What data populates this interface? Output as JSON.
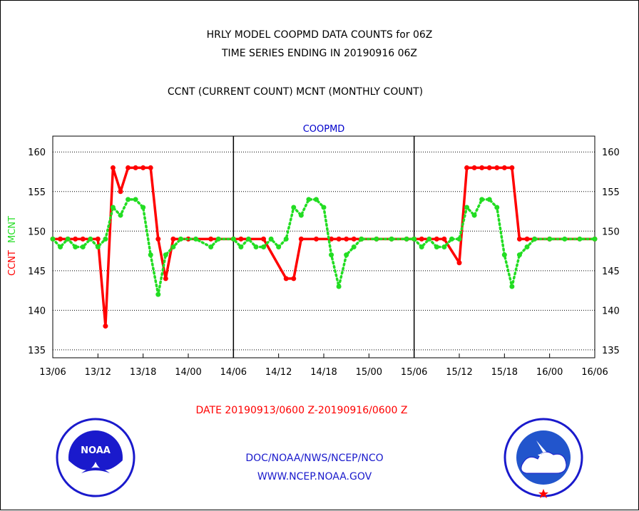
{
  "title_line1": "HRLY MODEL COOPMD DATA COUNTS for 06Z",
  "title_line2": "TIME SERIES ENDING IN 20190916 06Z",
  "title_line3": "CCNT (CURRENT COUNT) MCNT (MONTHLY COUNT)",
  "date_range": "DATE 20190913/0600 Z-20190916/0600 Z",
  "footer": {
    "line1": "DOC/NOAA/NWS/NCEP/NCO",
    "line2": "WWW.NCEP.NOAA.GOV"
  },
  "logos": {
    "left": "noaa-logo",
    "right": "nws-logo"
  },
  "colors": {
    "ccnt": "#ff0000",
    "mcnt": "#22dd22",
    "axis": "#000000"
  },
  "chart_data": {
    "type": "line",
    "title": "COOPMD",
    "ylabel_parts": [
      "CCNT",
      "MCNT"
    ],
    "ylim": [
      134,
      162
    ],
    "yticks": [
      135,
      140,
      145,
      150,
      155,
      160
    ],
    "xlim": [
      0,
      72
    ],
    "xticks": [
      {
        "x": 0,
        "label": "13/06"
      },
      {
        "x": 6,
        "label": "13/12"
      },
      {
        "x": 12,
        "label": "13/18"
      },
      {
        "x": 18,
        "label": "14/00"
      },
      {
        "x": 24,
        "label": "14/06"
      },
      {
        "x": 30,
        "label": "14/12"
      },
      {
        "x": 36,
        "label": "14/18"
      },
      {
        "x": 42,
        "label": "15/00"
      },
      {
        "x": 48,
        "label": "15/06"
      },
      {
        "x": 54,
        "label": "15/12"
      },
      {
        "x": 60,
        "label": "15/18"
      },
      {
        "x": 66,
        "label": "16/00"
      },
      {
        "x": 72,
        "label": "16/06"
      }
    ],
    "panel_dividers": [
      24,
      48
    ],
    "grid": true,
    "series": [
      {
        "name": "CCNT",
        "style": "solid",
        "points": [
          [
            0,
            149
          ],
          [
            1,
            149
          ],
          [
            2,
            149
          ],
          [
            3,
            149
          ],
          [
            4,
            149
          ],
          [
            6,
            149
          ],
          [
            7,
            138
          ],
          [
            8,
            158
          ],
          [
            9,
            155
          ],
          [
            10,
            158
          ],
          [
            11,
            158
          ],
          [
            12,
            158
          ],
          [
            13,
            158
          ],
          [
            14,
            149
          ],
          [
            15,
            144
          ],
          [
            16,
            149
          ],
          [
            18,
            149
          ],
          [
            21,
            149
          ],
          [
            24,
            149
          ],
          [
            25,
            149
          ],
          [
            28,
            149
          ],
          [
            31,
            144
          ],
          [
            32,
            144
          ],
          [
            33,
            149
          ],
          [
            35,
            149
          ],
          [
            37,
            149
          ],
          [
            38,
            149
          ],
          [
            39,
            149
          ],
          [
            40,
            149
          ],
          [
            41,
            149
          ],
          [
            43,
            149
          ],
          [
            45,
            149
          ],
          [
            47,
            149
          ],
          [
            48,
            149
          ],
          [
            49,
            149
          ],
          [
            51,
            149
          ],
          [
            52,
            149
          ],
          [
            54,
            146
          ],
          [
            55,
            158
          ],
          [
            56,
            158
          ],
          [
            57,
            158
          ],
          [
            58,
            158
          ],
          [
            59,
            158
          ],
          [
            60,
            158
          ],
          [
            61,
            158
          ],
          [
            62,
            149
          ],
          [
            63,
            149
          ],
          [
            64,
            149
          ],
          [
            66,
            149
          ],
          [
            72,
            149
          ]
        ]
      },
      {
        "name": "MCNT",
        "style": "dotted",
        "points": [
          [
            0,
            149
          ],
          [
            1,
            148
          ],
          [
            2,
            149
          ],
          [
            3,
            148
          ],
          [
            4,
            148
          ],
          [
            5,
            149
          ],
          [
            6,
            148
          ],
          [
            7,
            149
          ],
          [
            8,
            153
          ],
          [
            9,
            152
          ],
          [
            10,
            154
          ],
          [
            11,
            154
          ],
          [
            12,
            153
          ],
          [
            13,
            147
          ],
          [
            14,
            142
          ],
          [
            15,
            147
          ],
          [
            16,
            148
          ],
          [
            17,
            149
          ],
          [
            19,
            149
          ],
          [
            21,
            148
          ],
          [
            22,
            149
          ],
          [
            24,
            149
          ],
          [
            25,
            148
          ],
          [
            26,
            149
          ],
          [
            27,
            148
          ],
          [
            28,
            148
          ],
          [
            29,
            149
          ],
          [
            30,
            148
          ],
          [
            31,
            149
          ],
          [
            32,
            153
          ],
          [
            33,
            152
          ],
          [
            34,
            154
          ],
          [
            35,
            154
          ],
          [
            36,
            153
          ],
          [
            37,
            147
          ],
          [
            38,
            143
          ],
          [
            39,
            147
          ],
          [
            40,
            148
          ],
          [
            41,
            149
          ],
          [
            43,
            149
          ],
          [
            45,
            149
          ],
          [
            47,
            149
          ],
          [
            48,
            149
          ],
          [
            49,
            148
          ],
          [
            50,
            149
          ],
          [
            51,
            148
          ],
          [
            52,
            148
          ],
          [
            53,
            149
          ],
          [
            54,
            149
          ],
          [
            55,
            153
          ],
          [
            56,
            152
          ],
          [
            57,
            154
          ],
          [
            58,
            154
          ],
          [
            59,
            153
          ],
          [
            60,
            147
          ],
          [
            61,
            143
          ],
          [
            62,
            147
          ],
          [
            63,
            148
          ],
          [
            64,
            149
          ],
          [
            66,
            149
          ],
          [
            68,
            149
          ],
          [
            70,
            149
          ],
          [
            72,
            149
          ]
        ]
      }
    ]
  }
}
